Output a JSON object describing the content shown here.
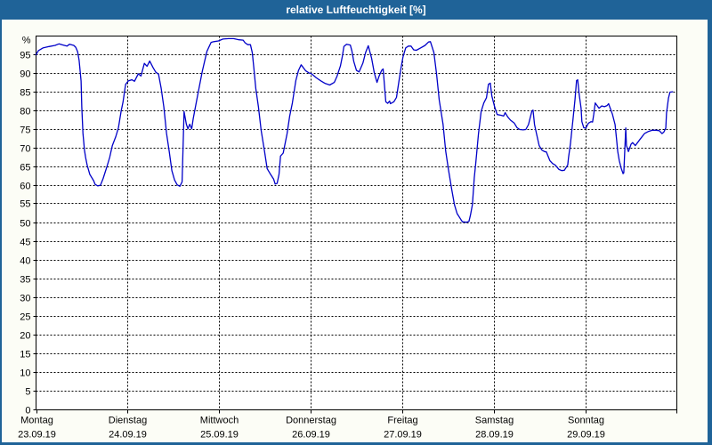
{
  "window": {
    "title": "relative Luftfeuchtigkeit [%]"
  },
  "chart_data": {
    "type": "line",
    "title": "relative Luftfeuchtigkeit [%]",
    "legend": "none",
    "grid": "dashed",
    "colors": {
      "line": "#0000c8",
      "titlebar_bg": "#1f6398",
      "titlebar_text": "#ffffff",
      "frame": "#1f6398",
      "content_bg": "#fcfdf6",
      "plot_bg": "#ffffff",
      "grid": "#000000",
      "axis": "#000000"
    },
    "y_axis": {
      "unit_label": "%",
      "ylim": [
        0,
        100
      ],
      "tick_step": 5,
      "ticks": [
        0,
        5,
        10,
        15,
        20,
        25,
        30,
        35,
        40,
        45,
        50,
        55,
        60,
        65,
        70,
        75,
        80,
        85,
        90,
        95
      ]
    },
    "x_axis": {
      "hours_per_day": 24,
      "hours_total": 168,
      "days": [
        {
          "name": "Montag",
          "date": "23.09.19"
        },
        {
          "name": "Dienstag",
          "date": "24.09.19"
        },
        {
          "name": "Mittwoch",
          "date": "25.09.19"
        },
        {
          "name": "Donnerstag",
          "date": "26.09.19"
        },
        {
          "name": "Freitag",
          "date": "27.09.19"
        },
        {
          "name": "Samstag",
          "date": "28.09.19"
        },
        {
          "name": "Sonntag",
          "date": "29.09.19"
        }
      ]
    },
    "series": [
      {
        "name": "relative Luftfeuchtigkeit",
        "unit": "%",
        "points_hours_value": [
          [
            0,
            95.0
          ],
          [
            0.6,
            96.1
          ],
          [
            1.8,
            96.8
          ],
          [
            3.4,
            97.2
          ],
          [
            5.0,
            97.5
          ],
          [
            6.0,
            97.9
          ],
          [
            7.1,
            97.6
          ],
          [
            8.1,
            97.3
          ],
          [
            8.8,
            97.8
          ],
          [
            9.9,
            97.5
          ],
          [
            10.4,
            97.0
          ],
          [
            10.9,
            95.8
          ],
          [
            11.3,
            93.5
          ],
          [
            11.8,
            88.0
          ],
          [
            12.0,
            81.0
          ],
          [
            12.3,
            74.0
          ],
          [
            12.7,
            69.5
          ],
          [
            13.0,
            67.5
          ],
          [
            13.4,
            65.5
          ],
          [
            14.1,
            63.0
          ],
          [
            15.1,
            61.3
          ],
          [
            15.5,
            60.3
          ],
          [
            16.2,
            59.9
          ],
          [
            16.9,
            60.1
          ],
          [
            17.6,
            61.9
          ],
          [
            18.6,
            65.1
          ],
          [
            19.3,
            67.5
          ],
          [
            20.0,
            70.7
          ],
          [
            20.9,
            73.1
          ],
          [
            21.6,
            75.5
          ],
          [
            22.3,
            79.9
          ],
          [
            22.8,
            82.3
          ],
          [
            23.3,
            85.9
          ],
          [
            23.5,
            87.1
          ],
          [
            24.2,
            88.0
          ],
          [
            25.1,
            88.3
          ],
          [
            25.8,
            87.9
          ],
          [
            26.8,
            89.9
          ],
          [
            27.5,
            89.3
          ],
          [
            28.4,
            92.7
          ],
          [
            29.1,
            91.9
          ],
          [
            29.8,
            93.3
          ],
          [
            30.7,
            91.5
          ],
          [
            31.4,
            90.3
          ],
          [
            32.1,
            89.8
          ],
          [
            32.8,
            86.0
          ],
          [
            33.5,
            81.0
          ],
          [
            34.2,
            74.0
          ],
          [
            34.9,
            69.2
          ],
          [
            35.6,
            64.0
          ],
          [
            36.3,
            61.5
          ],
          [
            37.0,
            60.2
          ],
          [
            37.7,
            59.8
          ],
          [
            38.3,
            61.0
          ],
          [
            38.6,
            72.0
          ],
          [
            38.8,
            79.8
          ],
          [
            39.4,
            76.4
          ],
          [
            39.8,
            75.2
          ],
          [
            40.3,
            76.4
          ],
          [
            40.8,
            75.2
          ],
          [
            41.2,
            77.9
          ],
          [
            42.4,
            84.3
          ],
          [
            43.6,
            90.7
          ],
          [
            44.8,
            95.9
          ],
          [
            45.9,
            98.3
          ],
          [
            46.6,
            98.5
          ],
          [
            47.8,
            98.7
          ],
          [
            49.0,
            99.2
          ],
          [
            50.4,
            99.3
          ],
          [
            51.8,
            99.3
          ],
          [
            53.2,
            99.0
          ],
          [
            54.3,
            98.9
          ],
          [
            54.8,
            98.2
          ],
          [
            55.5,
            97.7
          ],
          [
            56.2,
            97.7
          ],
          [
            56.7,
            95.5
          ],
          [
            57.1,
            91.5
          ],
          [
            57.6,
            86.0
          ],
          [
            58.3,
            81.0
          ],
          [
            59.0,
            74.8
          ],
          [
            59.9,
            69.2
          ],
          [
            60.6,
            64.5
          ],
          [
            61.3,
            63.3
          ],
          [
            62.3,
            61.7
          ],
          [
            62.7,
            60.4
          ],
          [
            63.2,
            60.6
          ],
          [
            63.7,
            63.0
          ],
          [
            64.1,
            67.9
          ],
          [
            64.8,
            68.7
          ],
          [
            65.8,
            73.8
          ],
          [
            66.5,
            78.6
          ],
          [
            67.2,
            82.1
          ],
          [
            68.1,
            88.1
          ],
          [
            68.8,
            90.8
          ],
          [
            69.5,
            92.3
          ],
          [
            70.7,
            90.7
          ],
          [
            71.6,
            90.1
          ],
          [
            72.1,
            90.0
          ],
          [
            73.5,
            88.8
          ],
          [
            74.7,
            88.0
          ],
          [
            75.8,
            87.3
          ],
          [
            77.0,
            86.9
          ],
          [
            78.2,
            87.6
          ],
          [
            78.9,
            89.2
          ],
          [
            79.8,
            92.0
          ],
          [
            80.3,
            94.5
          ],
          [
            80.7,
            97.2
          ],
          [
            81.4,
            97.8
          ],
          [
            82.4,
            97.6
          ],
          [
            82.8,
            96.0
          ],
          [
            83.3,
            93.2
          ],
          [
            84.0,
            90.8
          ],
          [
            84.7,
            90.4
          ],
          [
            85.7,
            92.8
          ],
          [
            86.4,
            95.6
          ],
          [
            87.1,
            97.4
          ],
          [
            88.0,
            94.0
          ],
          [
            88.7,
            90.1
          ],
          [
            89.4,
            87.6
          ],
          [
            89.9,
            89.2
          ],
          [
            90.6,
            90.8
          ],
          [
            91.0,
            91.2
          ],
          [
            91.7,
            82.4
          ],
          [
            92.2,
            82.0
          ],
          [
            92.7,
            82.6
          ],
          [
            92.9,
            81.9
          ],
          [
            93.4,
            82.2
          ],
          [
            93.8,
            82.4
          ],
          [
            94.5,
            83.6
          ],
          [
            95.2,
            88.3
          ],
          [
            95.7,
            91.5
          ],
          [
            96.2,
            94.4
          ],
          [
            96.9,
            96.8
          ],
          [
            97.6,
            97.3
          ],
          [
            98.3,
            97.3
          ],
          [
            99.0,
            96.3
          ],
          [
            99.7,
            96.2
          ],
          [
            100.8,
            96.8
          ],
          [
            102.0,
            97.5
          ],
          [
            102.9,
            98.4
          ],
          [
            103.4,
            98.5
          ],
          [
            104.3,
            95.6
          ],
          [
            105.0,
            89.9
          ],
          [
            105.7,
            82.9
          ],
          [
            106.7,
            76.4
          ],
          [
            107.4,
            69.2
          ],
          [
            108.1,
            64.4
          ],
          [
            109.0,
            58.9
          ],
          [
            109.7,
            54.9
          ],
          [
            110.4,
            52.5
          ],
          [
            111.4,
            50.9
          ],
          [
            111.8,
            50.3
          ],
          [
            112.8,
            50.2
          ],
          [
            113.5,
            50.4
          ],
          [
            113.9,
            52.1
          ],
          [
            114.4,
            54.9
          ],
          [
            114.9,
            62.1
          ],
          [
            115.3,
            66.1
          ],
          [
            116.0,
            73.8
          ],
          [
            116.7,
            79.8
          ],
          [
            117.4,
            82.1
          ],
          [
            118.1,
            83.5
          ],
          [
            118.6,
            87.1
          ],
          [
            119.1,
            87.4
          ],
          [
            119.5,
            84.0
          ],
          [
            120.2,
            81.2
          ],
          [
            120.9,
            79.0
          ],
          [
            121.9,
            78.8
          ],
          [
            122.6,
            78.6
          ],
          [
            123.0,
            79.5
          ],
          [
            123.7,
            78.3
          ],
          [
            124.4,
            77.5
          ],
          [
            125.4,
            76.7
          ],
          [
            126.1,
            75.5
          ],
          [
            126.8,
            75.0
          ],
          [
            127.7,
            74.9
          ],
          [
            128.4,
            75.0
          ],
          [
            129.1,
            76.3
          ],
          [
            130.0,
            79.9
          ],
          [
            130.3,
            80.2
          ],
          [
            130.7,
            76.3
          ],
          [
            131.2,
            73.9
          ],
          [
            131.9,
            70.7
          ],
          [
            132.6,
            69.5
          ],
          [
            133.3,
            69.1
          ],
          [
            133.8,
            69.0
          ],
          [
            134.7,
            66.7
          ],
          [
            135.4,
            65.9
          ],
          [
            136.1,
            65.5
          ],
          [
            137.1,
            64.3
          ],
          [
            137.8,
            64.0
          ],
          [
            138.5,
            64.1
          ],
          [
            139.4,
            65.5
          ],
          [
            139.6,
            67.5
          ],
          [
            140.1,
            71.1
          ],
          [
            140.8,
            77.9
          ],
          [
            141.3,
            83.1
          ],
          [
            141.7,
            88.1
          ],
          [
            142.0,
            88.3
          ],
          [
            142.4,
            84.3
          ],
          [
            142.9,
            80.7
          ],
          [
            143.1,
            77.1
          ],
          [
            143.6,
            75.5
          ],
          [
            144.1,
            75.3
          ],
          [
            144.8,
            76.7
          ],
          [
            145.5,
            77.1
          ],
          [
            145.9,
            77.0
          ],
          [
            146.2,
            79.0
          ],
          [
            146.6,
            82.1
          ],
          [
            147.6,
            80.7
          ],
          [
            148.3,
            81.3
          ],
          [
            149.0,
            81.1
          ],
          [
            149.7,
            81.4
          ],
          [
            150.1,
            81.9
          ],
          [
            151.1,
            79.1
          ],
          [
            151.8,
            76.3
          ],
          [
            152.2,
            72.3
          ],
          [
            152.5,
            69.1
          ],
          [
            152.9,
            66.7
          ],
          [
            153.4,
            64.7
          ],
          [
            153.9,
            63.2
          ],
          [
            154.1,
            63.4
          ],
          [
            154.6,
            75.4
          ],
          [
            154.8,
            70.7
          ],
          [
            155.3,
            69.1
          ],
          [
            156.0,
            71.1
          ],
          [
            156.4,
            71.5
          ],
          [
            157.1,
            70.7
          ],
          [
            158.3,
            72.3
          ],
          [
            159.5,
            73.9
          ],
          [
            160.6,
            74.5
          ],
          [
            161.6,
            74.8
          ],
          [
            162.5,
            74.8
          ],
          [
            163.4,
            74.7
          ],
          [
            164.1,
            73.9
          ],
          [
            164.6,
            74.3
          ],
          [
            165.1,
            75.4
          ],
          [
            165.3,
            79.4
          ],
          [
            165.8,
            83.4
          ],
          [
            166.2,
            85.0
          ],
          [
            166.9,
            85.1
          ]
        ]
      }
    ]
  }
}
